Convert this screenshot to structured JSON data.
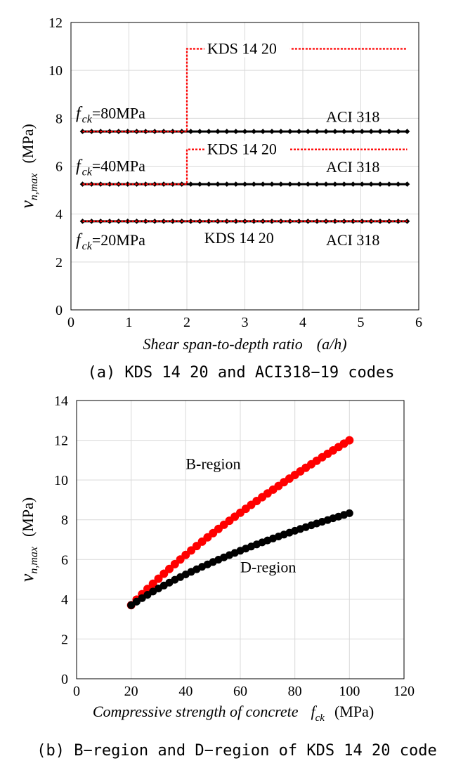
{
  "chart_data": [
    {
      "type": "line",
      "caption": "(a) KDS 14 20 and ACI318−19 codes",
      "xlabel": "Shear span-to-depth ratio",
      "xlabel_symbol": "(a/h)",
      "ylabel_symbol": "v",
      "ylabel_subscript": "n,max",
      "ylabel_unit": "(MPa)",
      "xlim": [
        0,
        6
      ],
      "ylim": [
        0,
        12
      ],
      "xticks": [
        "0",
        "1",
        "2",
        "3",
        "4",
        "5",
        "6"
      ],
      "yticks": [
        "0",
        "2",
        "4",
        "6",
        "8",
        "10",
        "12"
      ],
      "grid": true,
      "fck_labels": [
        {
          "prefix": "f",
          "sub": "ck",
          "text": "=80MPa",
          "y": 8.2
        },
        {
          "prefix": "f",
          "sub": "ck",
          "text": "=40MPa",
          "y": 6.0
        },
        {
          "prefix": "f",
          "sub": "ck",
          "text": "=20MPa",
          "y": 2.9
        }
      ],
      "series": [
        {
          "label": "ACI 318",
          "code": "ACI",
          "color": "#000000",
          "x": [
            0.2,
            5.8
          ],
          "y": [
            7.45,
            7.45
          ],
          "label_at": [
            4.4,
            8.05
          ]
        },
        {
          "label": "KDS 14 20",
          "code": "KDS",
          "color": "#ff0000",
          "x": [
            0.2,
            2.0,
            2.0,
            5.8
          ],
          "y": [
            7.45,
            7.45,
            10.9,
            10.9
          ],
          "label_at": [
            2.35,
            10.9
          ]
        },
        {
          "label": "ACI 318",
          "code": "ACI",
          "color": "#000000",
          "x": [
            0.2,
            5.8
          ],
          "y": [
            5.25,
            5.25
          ],
          "label_at": [
            4.4,
            5.95
          ]
        },
        {
          "label": "KDS 14 20",
          "code": "KDS",
          "color": "#ff0000",
          "x": [
            0.2,
            2.0,
            2.0,
            5.8
          ],
          "y": [
            5.25,
            5.25,
            6.7,
            6.7
          ],
          "label_at": [
            2.35,
            6.7
          ]
        },
        {
          "label": "ACI 318",
          "code": "ACI",
          "color": "#000000",
          "x": [
            0.2,
            5.8
          ],
          "y": [
            3.7,
            3.7
          ],
          "label_at": [
            4.4,
            2.9
          ]
        },
        {
          "label": "KDS 14 20",
          "code": "KDS",
          "color": "#ff0000",
          "x": [
            0.2,
            5.8
          ],
          "y": [
            3.7,
            3.7
          ],
          "label_at": [
            2.3,
            3.0
          ]
        }
      ]
    },
    {
      "type": "scatter",
      "caption": "(b) B−region and D−region of KDS 14 20 code",
      "xlabel": "Compressive strength of concrete",
      "xlabel_symbol": "f",
      "xlabel_subscript": "ck",
      "xlabel_unit": "(MPa)",
      "ylabel_symbol": "v",
      "ylabel_subscript": "n,max",
      "ylabel_unit": "(MPa)",
      "xlim": [
        0,
        120
      ],
      "ylim": [
        0,
        14
      ],
      "xticks": [
        "0",
        "20",
        "40",
        "60",
        "80",
        "100",
        "120"
      ],
      "yticks": [
        "0",
        "2",
        "4",
        "6",
        "8",
        "10",
        "12",
        "14"
      ],
      "grid": true,
      "series": [
        {
          "name": "B-region",
          "color": "#ff0000",
          "x_start": 20,
          "x_end": 100,
          "x_step": 2,
          "y_start": 3.7,
          "y_end": 12.0,
          "exponent": 0.67,
          "label_at": [
            40,
            10.8
          ]
        },
        {
          "name": "D-region",
          "color": "#000000",
          "x_start": 20,
          "x_end": 100,
          "x_step": 2,
          "y_start": 3.7,
          "y_end": 8.33,
          "exponent": 0.5,
          "label_at": [
            60,
            5.6
          ]
        }
      ]
    }
  ]
}
